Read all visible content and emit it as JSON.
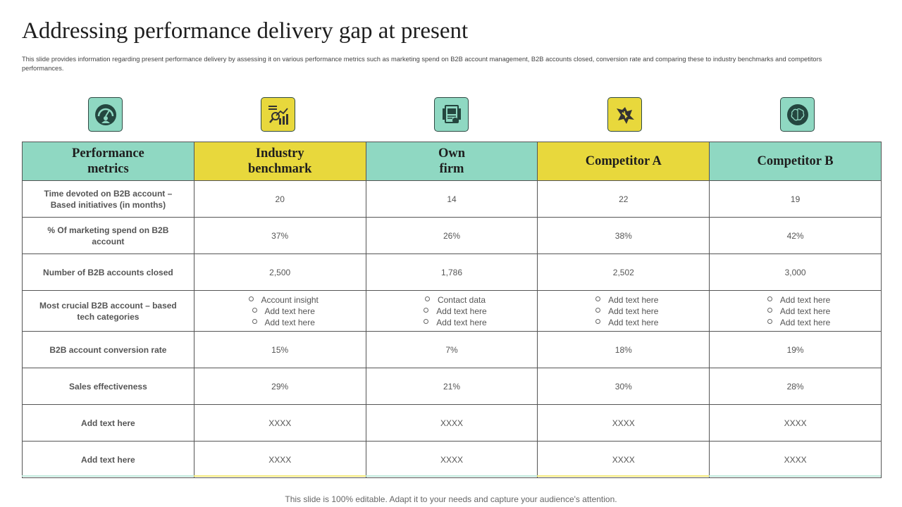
{
  "slide": {
    "title": "Addressing performance delivery gap at present",
    "subtitle": "This slide provides information regarding present performance delivery by assessing it on various performance metrics such as marketing spend on B2B account management, B2B accounts closed, conversion rate and comparing these to industry benchmarks and competitors performances.",
    "footer": "This slide is 100% editable. Adapt it to your needs and capture your audience's attention."
  },
  "icons": [
    {
      "name": "gauge-user-icon",
      "color": "#8fd8c2"
    },
    {
      "name": "analytics-chart-icon",
      "color": "#e8d83c"
    },
    {
      "name": "document-profile-icon",
      "color": "#8fd8c2"
    },
    {
      "name": "broken-arrow-icon",
      "color": "#e8d83c"
    },
    {
      "name": "brain-icon",
      "color": "#8fd8c2"
    }
  ],
  "colors": {
    "teal": "#8fd8c2",
    "yellow": "#e8d83c"
  },
  "table": {
    "headers": [
      "Performance\nmetrics",
      "Industry\nbenchmark",
      "Own\nfirm",
      "Competitor A",
      "Competitor B"
    ],
    "rows": [
      {
        "metric": "Time devoted on B2B account – Based initiatives (in months)",
        "values": [
          "20",
          "14",
          "22",
          "19"
        ]
      },
      {
        "metric": "% Of marketing spend on B2B account",
        "values": [
          "37%",
          "26%",
          "38%",
          "42%"
        ]
      },
      {
        "metric": "Number of B2B accounts closed",
        "values": [
          "2,500",
          "1,786",
          "2,502",
          "3,000"
        ]
      },
      {
        "metric": "Most crucial B2B account – based tech categories",
        "lists": [
          [
            "Account insight",
            "Add text here",
            "Add text here"
          ],
          [
            "Contact data",
            "Add text here",
            "Add text here"
          ],
          [
            "Add text here",
            "Add text here",
            "Add text here"
          ],
          [
            "Add text here",
            "Add text here",
            "Add text here"
          ]
        ]
      },
      {
        "metric": "B2B account conversion rate",
        "values": [
          "15%",
          "7%",
          "18%",
          "19%"
        ]
      },
      {
        "metric": "Sales effectiveness",
        "values": [
          "29%",
          "21%",
          "30%",
          "28%"
        ]
      },
      {
        "metric": "Add text here",
        "values": [
          "XXXX",
          "XXXX",
          "XXXX",
          "XXXX"
        ]
      },
      {
        "metric": "Add text here",
        "values": [
          "XXXX",
          "XXXX",
          "XXXX",
          "XXXX"
        ]
      }
    ]
  }
}
